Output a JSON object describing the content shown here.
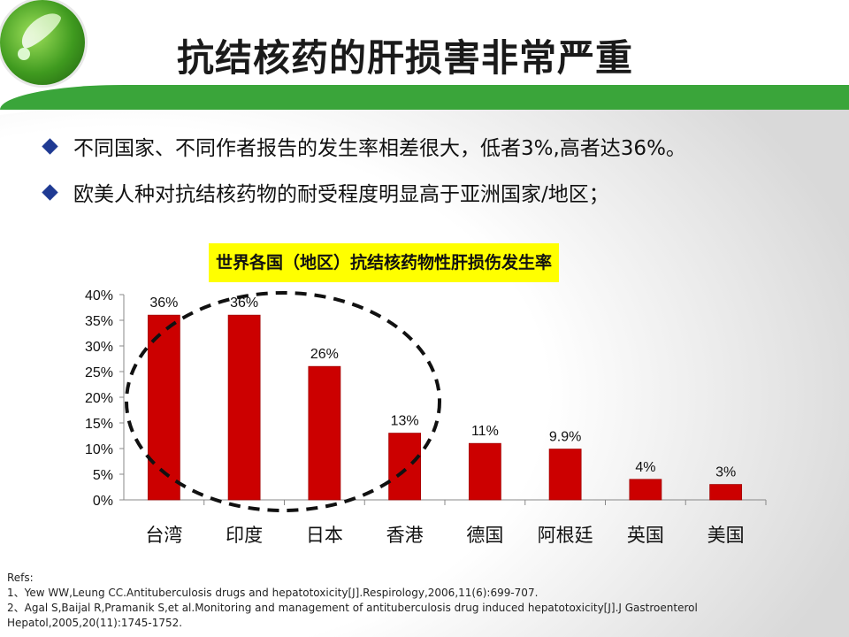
{
  "slide": {
    "title": "抗结核药的肝损害非常严重",
    "bullets": [
      "不同国家、不同作者报告的发生率相差很大，低者3%,高者达36%。",
      "欧美人种对抗结核药物的耐受程度明显高于亚洲国家/地区；"
    ],
    "refs": [
      "Refs:",
      "1、Yew WW,Leung CC.Antituberculosis drugs and hepatotoxicity[J].Respirology,2006,11(6):699-707.",
      "2、Agal S,Baijal R,Pramanik S,et al.Monitoring and management of antituberculosis drug induced hepatotoxicity[J].J Gastroenterol",
      "Hepatol,2005,20(11):1745-1752."
    ],
    "colors": {
      "accent": "#3aa53a",
      "bar": "#cc0000",
      "title_bg": "#ffff00",
      "bullet": "#1f3a93"
    }
  },
  "chart_data": {
    "type": "bar",
    "title": "世界各国（地区）抗结核药物性肝损伤发生率",
    "categories": [
      "台湾",
      "印度",
      "日本",
      "香港",
      "德国",
      "阿根廷",
      "英国",
      "美国"
    ],
    "values": [
      36,
      36,
      26,
      13,
      11,
      9.9,
      4,
      3
    ],
    "data_labels": [
      "36%",
      "36%",
      "26%",
      "13%",
      "11%",
      "9.9%",
      "4%",
      "3%"
    ],
    "yticks": [
      "0%",
      "5%",
      "10%",
      "15%",
      "20%",
      "25%",
      "30%",
      "35%",
      "40%"
    ],
    "ylim": [
      0,
      40
    ],
    "grid": false,
    "xlabel": "",
    "ylabel": ""
  }
}
